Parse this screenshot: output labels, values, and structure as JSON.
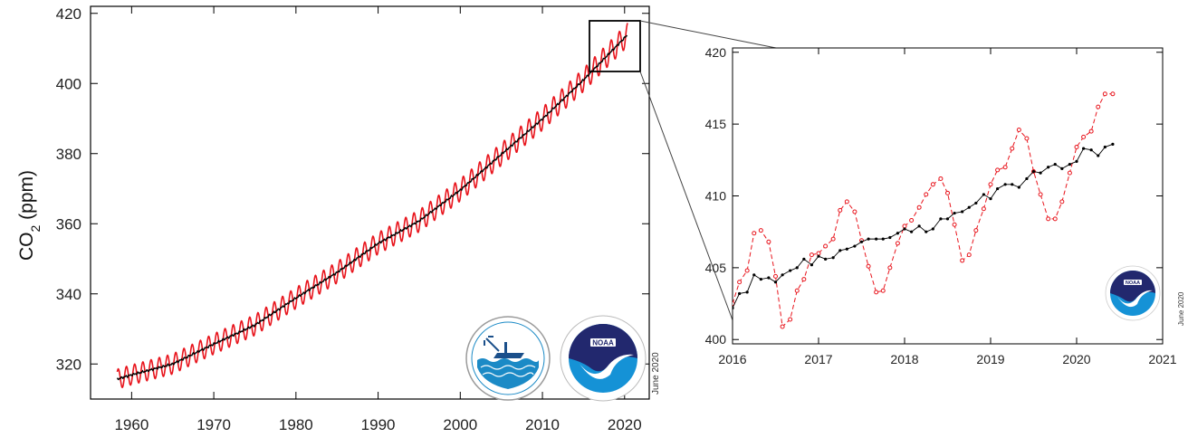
{
  "chart_data": [
    {
      "type": "line",
      "ylabel_main": "CO",
      "ylabel_sub": "2",
      "ylabel_unit": " (ppm)",
      "xlim": [
        1955,
        2023
      ],
      "ylim": [
        310,
        422
      ],
      "x_ticks": [
        "1960",
        "1970",
        "1980",
        "1990",
        "2000",
        "2010",
        "2020"
      ],
      "y_ticks": [
        "320",
        "340",
        "360",
        "380",
        "400",
        "420"
      ],
      "date_stamp": "June 2020",
      "series": [
        {
          "color": "#e8141c",
          "style": "monthly-seasonal",
          "seasonal_amplitude": 3.3,
          "x": [
            1958.25,
            1960,
            1965,
            1970,
            1975,
            1980,
            1985,
            1990,
            1995,
            2000,
            2005,
            2010,
            2015,
            2020.4
          ],
          "y": [
            315.7,
            316.9,
            320.0,
            325.7,
            331.1,
            338.8,
            346.1,
            354.4,
            360.8,
            369.6,
            379.8,
            389.9,
            401.0,
            414.0
          ]
        },
        {
          "color": "#000000",
          "style": "deseasonalized-trend",
          "x": [
            1958.25,
            1960,
            1965,
            1970,
            1975,
            1980,
            1985,
            1990,
            1995,
            2000,
            2005,
            2010,
            2015,
            2020.4
          ],
          "y": [
            315.7,
            316.9,
            320.0,
            325.7,
            331.1,
            338.8,
            346.1,
            354.4,
            360.8,
            369.6,
            379.8,
            389.9,
            401.0,
            414.0
          ]
        }
      ],
      "logos": [
        "scripps-institution-of-oceanography-logo",
        "noaa-logo"
      ]
    },
    {
      "type": "line",
      "xlim": [
        2016,
        2021
      ],
      "ylim": [
        399.7,
        420.3
      ],
      "x_ticks": [
        "2016",
        "2017",
        "2018",
        "2019",
        "2020",
        "2021"
      ],
      "y_ticks": [
        "400",
        "405",
        "410",
        "415",
        "420"
      ],
      "date_stamp": "June 2020",
      "series": [
        {
          "color": "#e8141c",
          "style": "dashed-with-circles",
          "x": [
            2016.0,
            2016.08,
            2016.17,
            2016.25,
            2016.33,
            2016.42,
            2016.5,
            2016.58,
            2016.67,
            2016.75,
            2016.83,
            2016.92,
            2017.0,
            2017.08,
            2017.17,
            2017.25,
            2017.33,
            2017.42,
            2017.5,
            2017.58,
            2017.67,
            2017.75,
            2017.83,
            2017.92,
            2018.0,
            2018.08,
            2018.17,
            2018.25,
            2018.33,
            2018.42,
            2018.5,
            2018.58,
            2018.67,
            2018.75,
            2018.83,
            2018.92,
            2019.0,
            2019.08,
            2019.17,
            2019.25,
            2019.33,
            2019.42,
            2019.5,
            2019.58,
            2019.67,
            2019.75,
            2019.83,
            2019.92,
            2020.0,
            2020.08,
            2020.17,
            2020.25,
            2020.33,
            2020.42
          ],
          "y": [
            402.5,
            404.0,
            404.8,
            407.4,
            407.6,
            406.8,
            404.4,
            400.9,
            401.4,
            403.4,
            404.2,
            405.9,
            406.0,
            406.5,
            407.0,
            409.0,
            409.6,
            408.9,
            406.9,
            405.1,
            403.3,
            403.4,
            405.0,
            406.7,
            407.9,
            408.3,
            409.2,
            410.1,
            410.8,
            411.2,
            410.2,
            408.0,
            405.5,
            405.9,
            407.6,
            409.1,
            410.8,
            411.8,
            412.0,
            413.3,
            414.6,
            414.0,
            411.7,
            410.1,
            408.4,
            408.4,
            409.6,
            411.6,
            413.4,
            414.1,
            414.5,
            416.2,
            417.1,
            417.1
          ]
        },
        {
          "color": "#000000",
          "style": "solid-with-dots",
          "x": [
            2016.0,
            2016.08,
            2016.17,
            2016.25,
            2016.33,
            2016.42,
            2016.5,
            2016.58,
            2016.67,
            2016.75,
            2016.83,
            2016.92,
            2017.0,
            2017.08,
            2017.17,
            2017.25,
            2017.33,
            2017.42,
            2017.5,
            2017.58,
            2017.67,
            2017.75,
            2017.83,
            2017.92,
            2018.0,
            2018.08,
            2018.17,
            2018.25,
            2018.33,
            2018.42,
            2018.5,
            2018.58,
            2018.67,
            2018.75,
            2018.83,
            2018.92,
            2019.0,
            2019.08,
            2019.17,
            2019.25,
            2019.33,
            2019.42,
            2019.5,
            2019.58,
            2019.67,
            2019.75,
            2019.83,
            2019.92,
            2020.0,
            2020.08,
            2020.17,
            2020.25,
            2020.33,
            2020.42
          ],
          "y": [
            402.2,
            403.2,
            403.3,
            404.5,
            404.2,
            404.3,
            404.0,
            404.5,
            404.8,
            405.0,
            405.6,
            405.2,
            405.8,
            405.6,
            405.7,
            406.2,
            406.3,
            406.5,
            406.8,
            407.0,
            407.0,
            407.0,
            407.1,
            407.4,
            407.7,
            407.5,
            407.9,
            407.5,
            407.7,
            408.4,
            408.4,
            408.8,
            408.9,
            409.2,
            409.5,
            410.1,
            409.8,
            410.5,
            410.8,
            410.8,
            410.6,
            411.2,
            411.7,
            411.6,
            412.0,
            412.2,
            411.9,
            412.2,
            412.4,
            413.3,
            413.2,
            412.8,
            413.4,
            413.6
          ]
        }
      ],
      "logos": [
        "noaa-logo"
      ]
    }
  ]
}
